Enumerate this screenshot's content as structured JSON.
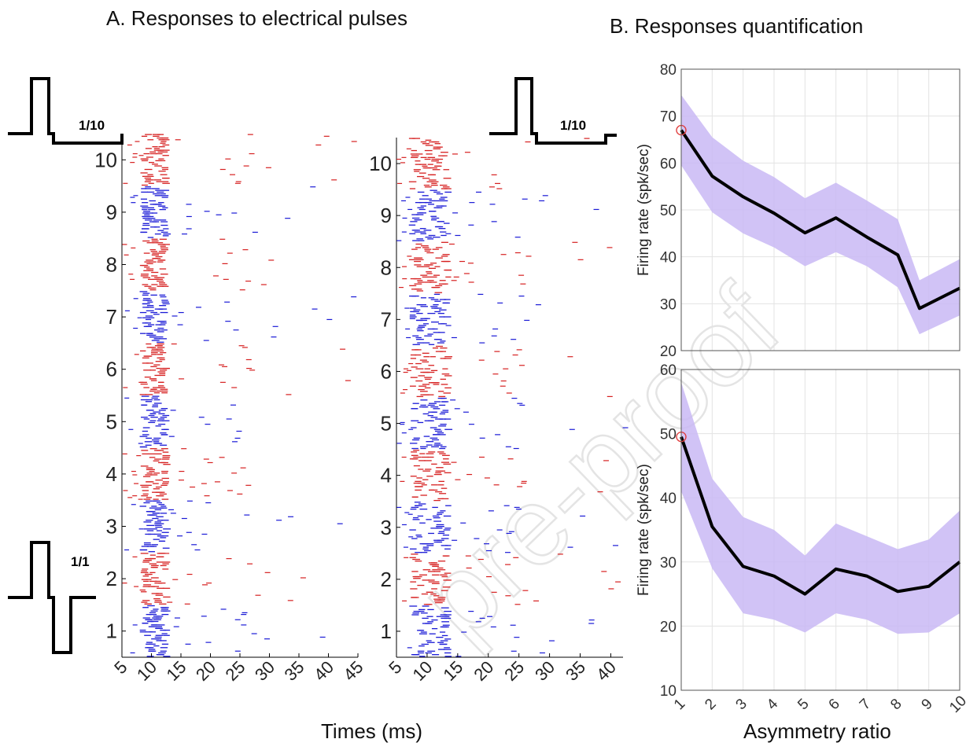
{
  "panel_a": {
    "heading": "A. Responses to electrical pulses",
    "x_title": "Times (ms)",
    "pulse_left_top_label": "1/10",
    "pulse_left_bottom_label": "1/1",
    "pulse_right_label": "1/10"
  },
  "panel_b": {
    "heading": "B. Responses quantification",
    "x_title": "Asymmetry ratio"
  },
  "watermark": "pre-proof",
  "colors": {
    "red_spikes": "#d62020",
    "blue_spikes": "#1a1ad6",
    "mean_line": "#000000",
    "band": "#c9b8f5",
    "first_marker": "#e04040"
  },
  "chart_data": [
    {
      "type": "scatter",
      "subtype": "raster",
      "xlim": [
        5,
        45
      ],
      "ylim": [
        0.5,
        10.5
      ],
      "xticks": [
        "5",
        "10",
        "15",
        "20",
        "25",
        "30",
        "35",
        "40",
        "45"
      ],
      "yticks": [
        "1",
        "2",
        "3",
        "4",
        "5",
        "6",
        "7",
        "8",
        "9",
        "10"
      ],
      "groups": [
        {
          "rows": [
            0.5,
            1.5
          ],
          "color": "blue"
        },
        {
          "rows": [
            1.5,
            2.5
          ],
          "color": "red"
        },
        {
          "rows": [
            2.5,
            3.5
          ],
          "color": "blue"
        },
        {
          "rows": [
            3.5,
            4.5
          ],
          "color": "red"
        },
        {
          "rows": [
            4.5,
            5.5
          ],
          "color": "blue"
        },
        {
          "rows": [
            5.5,
            6.5
          ],
          "color": "red"
        },
        {
          "rows": [
            6.5,
            7.5
          ],
          "color": "blue"
        },
        {
          "rows": [
            7.5,
            8.5
          ],
          "color": "red"
        },
        {
          "rows": [
            8.5,
            9.5
          ],
          "color": "blue"
        },
        {
          "rows": [
            9.5,
            10.5
          ],
          "color": "red"
        }
      ],
      "spike_concentration_ms": [
        8,
        12
      ]
    },
    {
      "type": "scatter",
      "subtype": "raster",
      "xlim": [
        5,
        42
      ],
      "ylim": [
        0.5,
        10.5
      ],
      "xticks": [
        "5",
        "10",
        "15",
        "20",
        "25",
        "30",
        "35",
        "40"
      ],
      "yticks": [
        "1",
        "2",
        "3",
        "4",
        "5",
        "6",
        "7",
        "8",
        "9",
        "10"
      ],
      "groups": [
        {
          "rows": [
            0.5,
            1.5
          ],
          "color": "blue"
        },
        {
          "rows": [
            1.5,
            2.5
          ],
          "color": "red"
        },
        {
          "rows": [
            2.5,
            3.5
          ],
          "color": "blue"
        },
        {
          "rows": [
            3.5,
            4.5
          ],
          "color": "red"
        },
        {
          "rows": [
            4.5,
            5.5
          ],
          "color": "blue"
        },
        {
          "rows": [
            5.5,
            6.5
          ],
          "color": "red"
        },
        {
          "rows": [
            6.5,
            7.5
          ],
          "color": "blue"
        },
        {
          "rows": [
            7.5,
            8.5
          ],
          "color": "red"
        },
        {
          "rows": [
            8.5,
            9.5
          ],
          "color": "blue"
        },
        {
          "rows": [
            9.5,
            10.5
          ],
          "color": "red"
        }
      ],
      "spike_concentration_ms": [
        7,
        13
      ]
    },
    {
      "type": "line",
      "ylabel": "Firing rate (spk/sec)",
      "xlim": [
        1,
        10
      ],
      "ylim": [
        20,
        80
      ],
      "yticks": [
        "20",
        "30",
        "40",
        "50",
        "60",
        "70",
        "80"
      ],
      "x": [
        1,
        2,
        3,
        4,
        5,
        6,
        7,
        8,
        8.7,
        10
      ],
      "y": [
        67,
        57.2,
        52.8,
        49.3,
        45.1,
        48.3,
        44.2,
        40.4,
        29,
        33.3
      ],
      "band_upper": [
        74.5,
        65.5,
        60.5,
        57,
        52.5,
        55.8,
        52,
        48,
        35,
        39.5
      ],
      "band_lower": [
        59.5,
        49.5,
        45,
        42,
        38,
        41,
        38,
        33.5,
        23.5,
        27.5
      ],
      "grid": true
    },
    {
      "type": "line",
      "ylabel": "Firing rate (spk/sec)",
      "xlim": [
        1,
        10
      ],
      "ylim": [
        10,
        60
      ],
      "xticks": [
        "1",
        "2",
        "3",
        "4",
        "5",
        "6",
        "7",
        "8",
        "9",
        "10"
      ],
      "yticks": [
        "10",
        "20",
        "30",
        "40",
        "50",
        "60"
      ],
      "x": [
        1,
        2,
        3,
        4,
        5,
        6,
        7,
        8,
        9,
        10
      ],
      "y": [
        49.5,
        35.5,
        29.3,
        27.8,
        25,
        28.9,
        27.8,
        25.4,
        26.2,
        30
      ],
      "band_upper": [
        58,
        43,
        37,
        35,
        31,
        36,
        34,
        32,
        33.5,
        38
      ],
      "band_lower": [
        41,
        29,
        22,
        21,
        19,
        22,
        21,
        18.8,
        19,
        22
      ],
      "grid": true
    }
  ]
}
